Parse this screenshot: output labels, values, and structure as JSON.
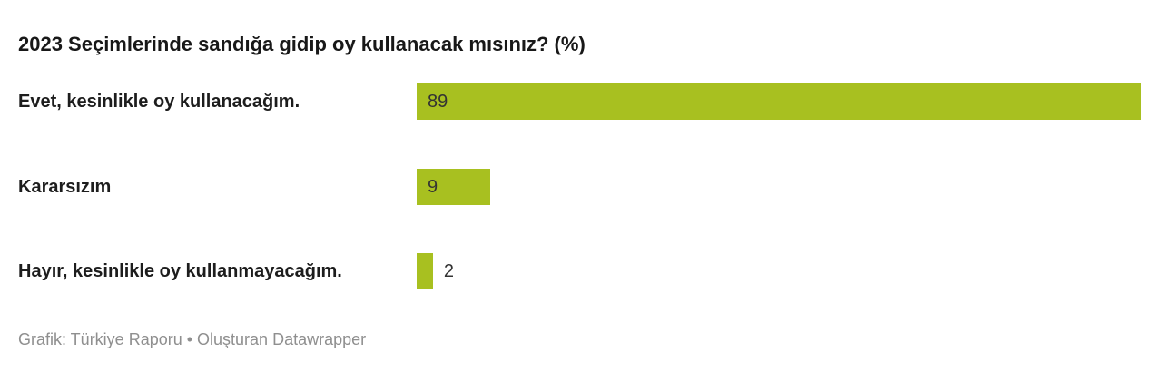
{
  "chart_data": {
    "type": "bar",
    "orientation": "horizontal",
    "title": "2023 Seçimlerinde sandığa gidip oy kullanacak mısınız? (%)",
    "categories": [
      "Evet, kesinlikle oy kullanacağım.",
      "Kararsızım",
      "Hayır, kesinlikle oy kullanmayacağım."
    ],
    "values": [
      89,
      9,
      2
    ],
    "value_labels": [
      "89",
      "9",
      "2"
    ],
    "xlim": [
      0,
      89
    ],
    "bar_color": "#a8c020",
    "grid": false,
    "legend": "none"
  },
  "footer": {
    "source": "Grafik: Türkiye Raporu • Oluşturan Datawrapper"
  }
}
